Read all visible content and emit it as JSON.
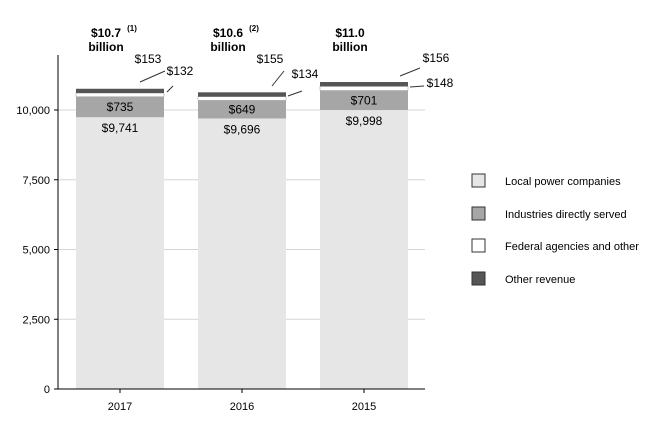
{
  "chart_data": {
    "type": "bar",
    "stacked": true,
    "categories": [
      "2017",
      "2016",
      "2015"
    ],
    "ylim": [
      0,
      12500
    ],
    "yticks": [
      0,
      2500,
      5000,
      7500,
      10000
    ],
    "ytick_labels": [
      "0",
      "2,500",
      "5,000",
      "7,500",
      "10,000"
    ],
    "grid": true,
    "legend_position": "right",
    "series": [
      {
        "name": "Local power companies",
        "values": [
          9741,
          9696,
          9998
        ],
        "labels": [
          "$9,741",
          "$9,696",
          "$9,998"
        ],
        "color": "#e6e6e6"
      },
      {
        "name": "Industries directly served",
        "values": [
          735,
          649,
          701
        ],
        "labels": [
          "$735",
          "$649",
          "$701"
        ],
        "color": "#a6a6a6"
      },
      {
        "name": "Federal agencies and other",
        "values": [
          132,
          134,
          148
        ],
        "labels": [
          "$132",
          "$134",
          "$148"
        ],
        "color": "#ffffff"
      },
      {
        "name": "Other revenue",
        "values": [
          153,
          155,
          156
        ],
        "labels": [
          "$153",
          "$155",
          "$156"
        ],
        "color": "#555555"
      }
    ],
    "totals": [
      {
        "value": "$10.7",
        "note": "(1)",
        "unit": "billion"
      },
      {
        "value": "$10.6",
        "note": "(2)",
        "unit": "billion"
      },
      {
        "value": "$11.0",
        "note": "",
        "unit": "billion"
      }
    ]
  }
}
